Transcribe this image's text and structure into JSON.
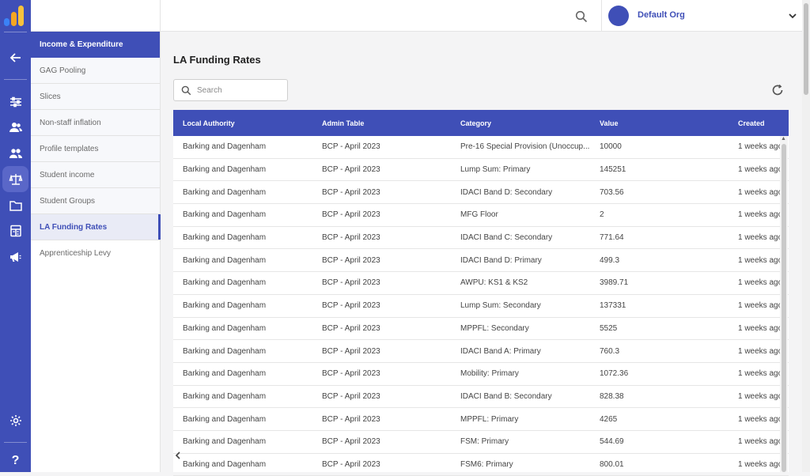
{
  "colors": {
    "primary": "#3f4fb7",
    "logo": [
      "#f5a623",
      "#f7c23c",
      "#ffd75e"
    ]
  },
  "rail": {
    "icons": [
      "back-arrow-icon",
      "sliders-icon",
      "users-icon",
      "people-icon",
      "scale-icon",
      "folder-icon",
      "calculator-icon",
      "megaphone-icon",
      "gear-icon",
      "help-icon"
    ],
    "help_label": "?"
  },
  "subnav": {
    "header": "Income & Expenditure",
    "items": [
      {
        "label": "GAG Pooling"
      },
      {
        "label": "Slices"
      },
      {
        "label": "Non-staff inflation"
      },
      {
        "label": "Profile templates"
      },
      {
        "label": "Student income"
      },
      {
        "label": "Student Groups"
      },
      {
        "label": "LA Funding Rates"
      },
      {
        "label": "Apprenticeship Levy"
      }
    ]
  },
  "topbar": {
    "org_name": "Default Org"
  },
  "main": {
    "title": "LA Funding Rates",
    "search_placeholder": "Search"
  },
  "table": {
    "columns": [
      "Local Authority",
      "Admin Table",
      "Category",
      "Value",
      "Created"
    ],
    "rows": [
      [
        "Barking and Dagenham",
        "BCP - April 2023",
        "Pre-16 Special Provision (Unoccup...",
        "10000",
        "1 weeks ago"
      ],
      [
        "Barking and Dagenham",
        "BCP - April 2023",
        "Lump Sum: Primary",
        "145251",
        "1 weeks ago"
      ],
      [
        "Barking and Dagenham",
        "BCP - April 2023",
        "IDACI Band D: Secondary",
        "703.56",
        "1 weeks ago"
      ],
      [
        "Barking and Dagenham",
        "BCP - April 2023",
        "MFG Floor",
        "2",
        "1 weeks ago"
      ],
      [
        "Barking and Dagenham",
        "BCP - April 2023",
        "IDACI Band C: Secondary",
        "771.64",
        "1 weeks ago"
      ],
      [
        "Barking and Dagenham",
        "BCP - April 2023",
        "IDACI Band D: Primary",
        "499.3",
        "1 weeks ago"
      ],
      [
        "Barking and Dagenham",
        "BCP - April 2023",
        "AWPU: KS1 & KS2",
        "3989.71",
        "1 weeks ago"
      ],
      [
        "Barking and Dagenham",
        "BCP - April 2023",
        "Lump Sum: Secondary",
        "137331",
        "1 weeks ago"
      ],
      [
        "Barking and Dagenham",
        "BCP - April 2023",
        "MPPFL: Secondary",
        "5525",
        "1 weeks ago"
      ],
      [
        "Barking and Dagenham",
        "BCP - April 2023",
        "IDACI Band A: Primary",
        "760.3",
        "1 weeks ago"
      ],
      [
        "Barking and Dagenham",
        "BCP - April 2023",
        "Mobility: Primary",
        "1072.36",
        "1 weeks ago"
      ],
      [
        "Barking and Dagenham",
        "BCP - April 2023",
        "IDACI Band B: Secondary",
        "828.38",
        "1 weeks ago"
      ],
      [
        "Barking and Dagenham",
        "BCP - April 2023",
        "MPPFL: Primary",
        "4265",
        "1 weeks ago"
      ],
      [
        "Barking and Dagenham",
        "BCP - April 2023",
        "FSM: Primary",
        "544.69",
        "1 weeks ago"
      ],
      [
        "Barking and Dagenham",
        "BCP - April 2023",
        "FSM6: Primary",
        "800.01",
        "1 weeks ago"
      ]
    ]
  }
}
